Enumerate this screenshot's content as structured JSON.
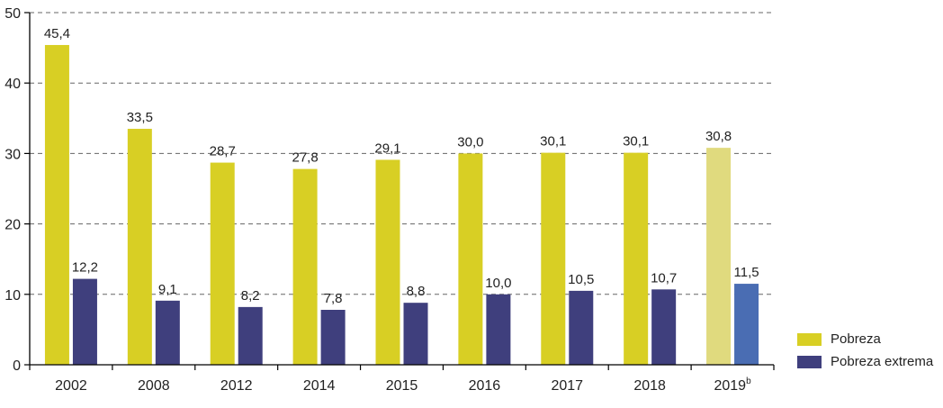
{
  "chart_data": {
    "type": "bar",
    "title": "",
    "xlabel": "",
    "ylabel": "",
    "ylim": [
      0,
      50
    ],
    "yticks": [
      0,
      10,
      20,
      30,
      40,
      50
    ],
    "grid": "horizontal dashed",
    "legend_position": "bottom-right",
    "categories": [
      "2002",
      "2008",
      "2012",
      "2014",
      "2015",
      "2016",
      "2017",
      "2018",
      "2019"
    ],
    "category_superscripts": [
      "",
      "",
      "",
      "",
      "",
      "",
      "",
      "",
      "b"
    ],
    "projected_category_index": 8,
    "series": [
      {
        "name": "Pobreza",
        "color": "#d8cf24",
        "projected_color": "#e0da7e",
        "values": [
          45.4,
          33.5,
          28.7,
          27.8,
          29.1,
          30.0,
          30.1,
          30.1,
          30.8
        ],
        "labels": [
          "45,4",
          "33,5",
          "28,7",
          "27,8",
          "29,1",
          "30,0",
          "30,1",
          "30,1",
          "30,8"
        ]
      },
      {
        "name": "Pobreza extrema",
        "color": "#3f3f7d",
        "projected_color": "#4a6db3",
        "values": [
          12.2,
          9.1,
          8.2,
          7.8,
          8.8,
          10.0,
          10.5,
          10.7,
          11.5
        ],
        "labels": [
          "12,2",
          "9,1",
          "8,2",
          "7,8",
          "8,8",
          "10,0",
          "10,5",
          "10,7",
          "11,5"
        ]
      }
    ]
  }
}
